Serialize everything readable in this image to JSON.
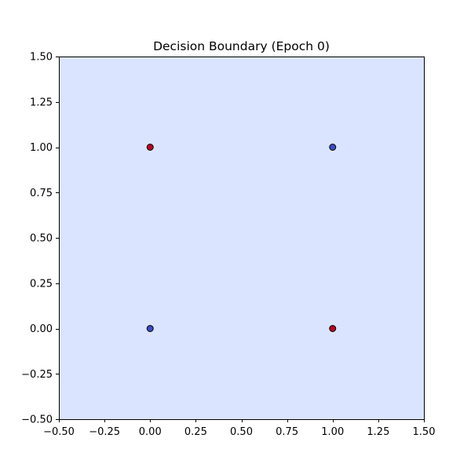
{
  "chart_data": {
    "type": "scatter",
    "title": "Decision Boundary (Epoch 0)",
    "xlabel": "",
    "ylabel": "",
    "xlim": [
      -0.5,
      1.5
    ],
    "ylim": [
      -0.5,
      1.5
    ],
    "xticks": [
      -0.5,
      -0.25,
      0.0,
      0.25,
      0.5,
      0.75,
      1.0,
      1.25,
      1.5
    ],
    "yticks": [
      -0.5,
      -0.25,
      0.0,
      0.25,
      0.5,
      0.75,
      1.0,
      1.25,
      1.5
    ],
    "xtick_labels": [
      "−0.50",
      "−0.25",
      "0.00",
      "0.25",
      "0.50",
      "0.75",
      "1.00",
      "1.25",
      "1.50"
    ],
    "ytick_labels": [
      "−0.50",
      "−0.25",
      "0.00",
      "0.25",
      "0.50",
      "0.75",
      "1.00",
      "1.25",
      "1.50"
    ],
    "grid": false,
    "background_region_color": "#dbe4fe",
    "points": [
      {
        "x": 0,
        "y": 0,
        "label": 0,
        "color": "#3b4cc0"
      },
      {
        "x": 0,
        "y": 1,
        "label": 1,
        "color": "#b40426"
      },
      {
        "x": 1,
        "y": 0,
        "label": 1,
        "color": "#b40426"
      },
      {
        "x": 1,
        "y": 1,
        "label": 0,
        "color": "#3b4cc0"
      }
    ]
  }
}
